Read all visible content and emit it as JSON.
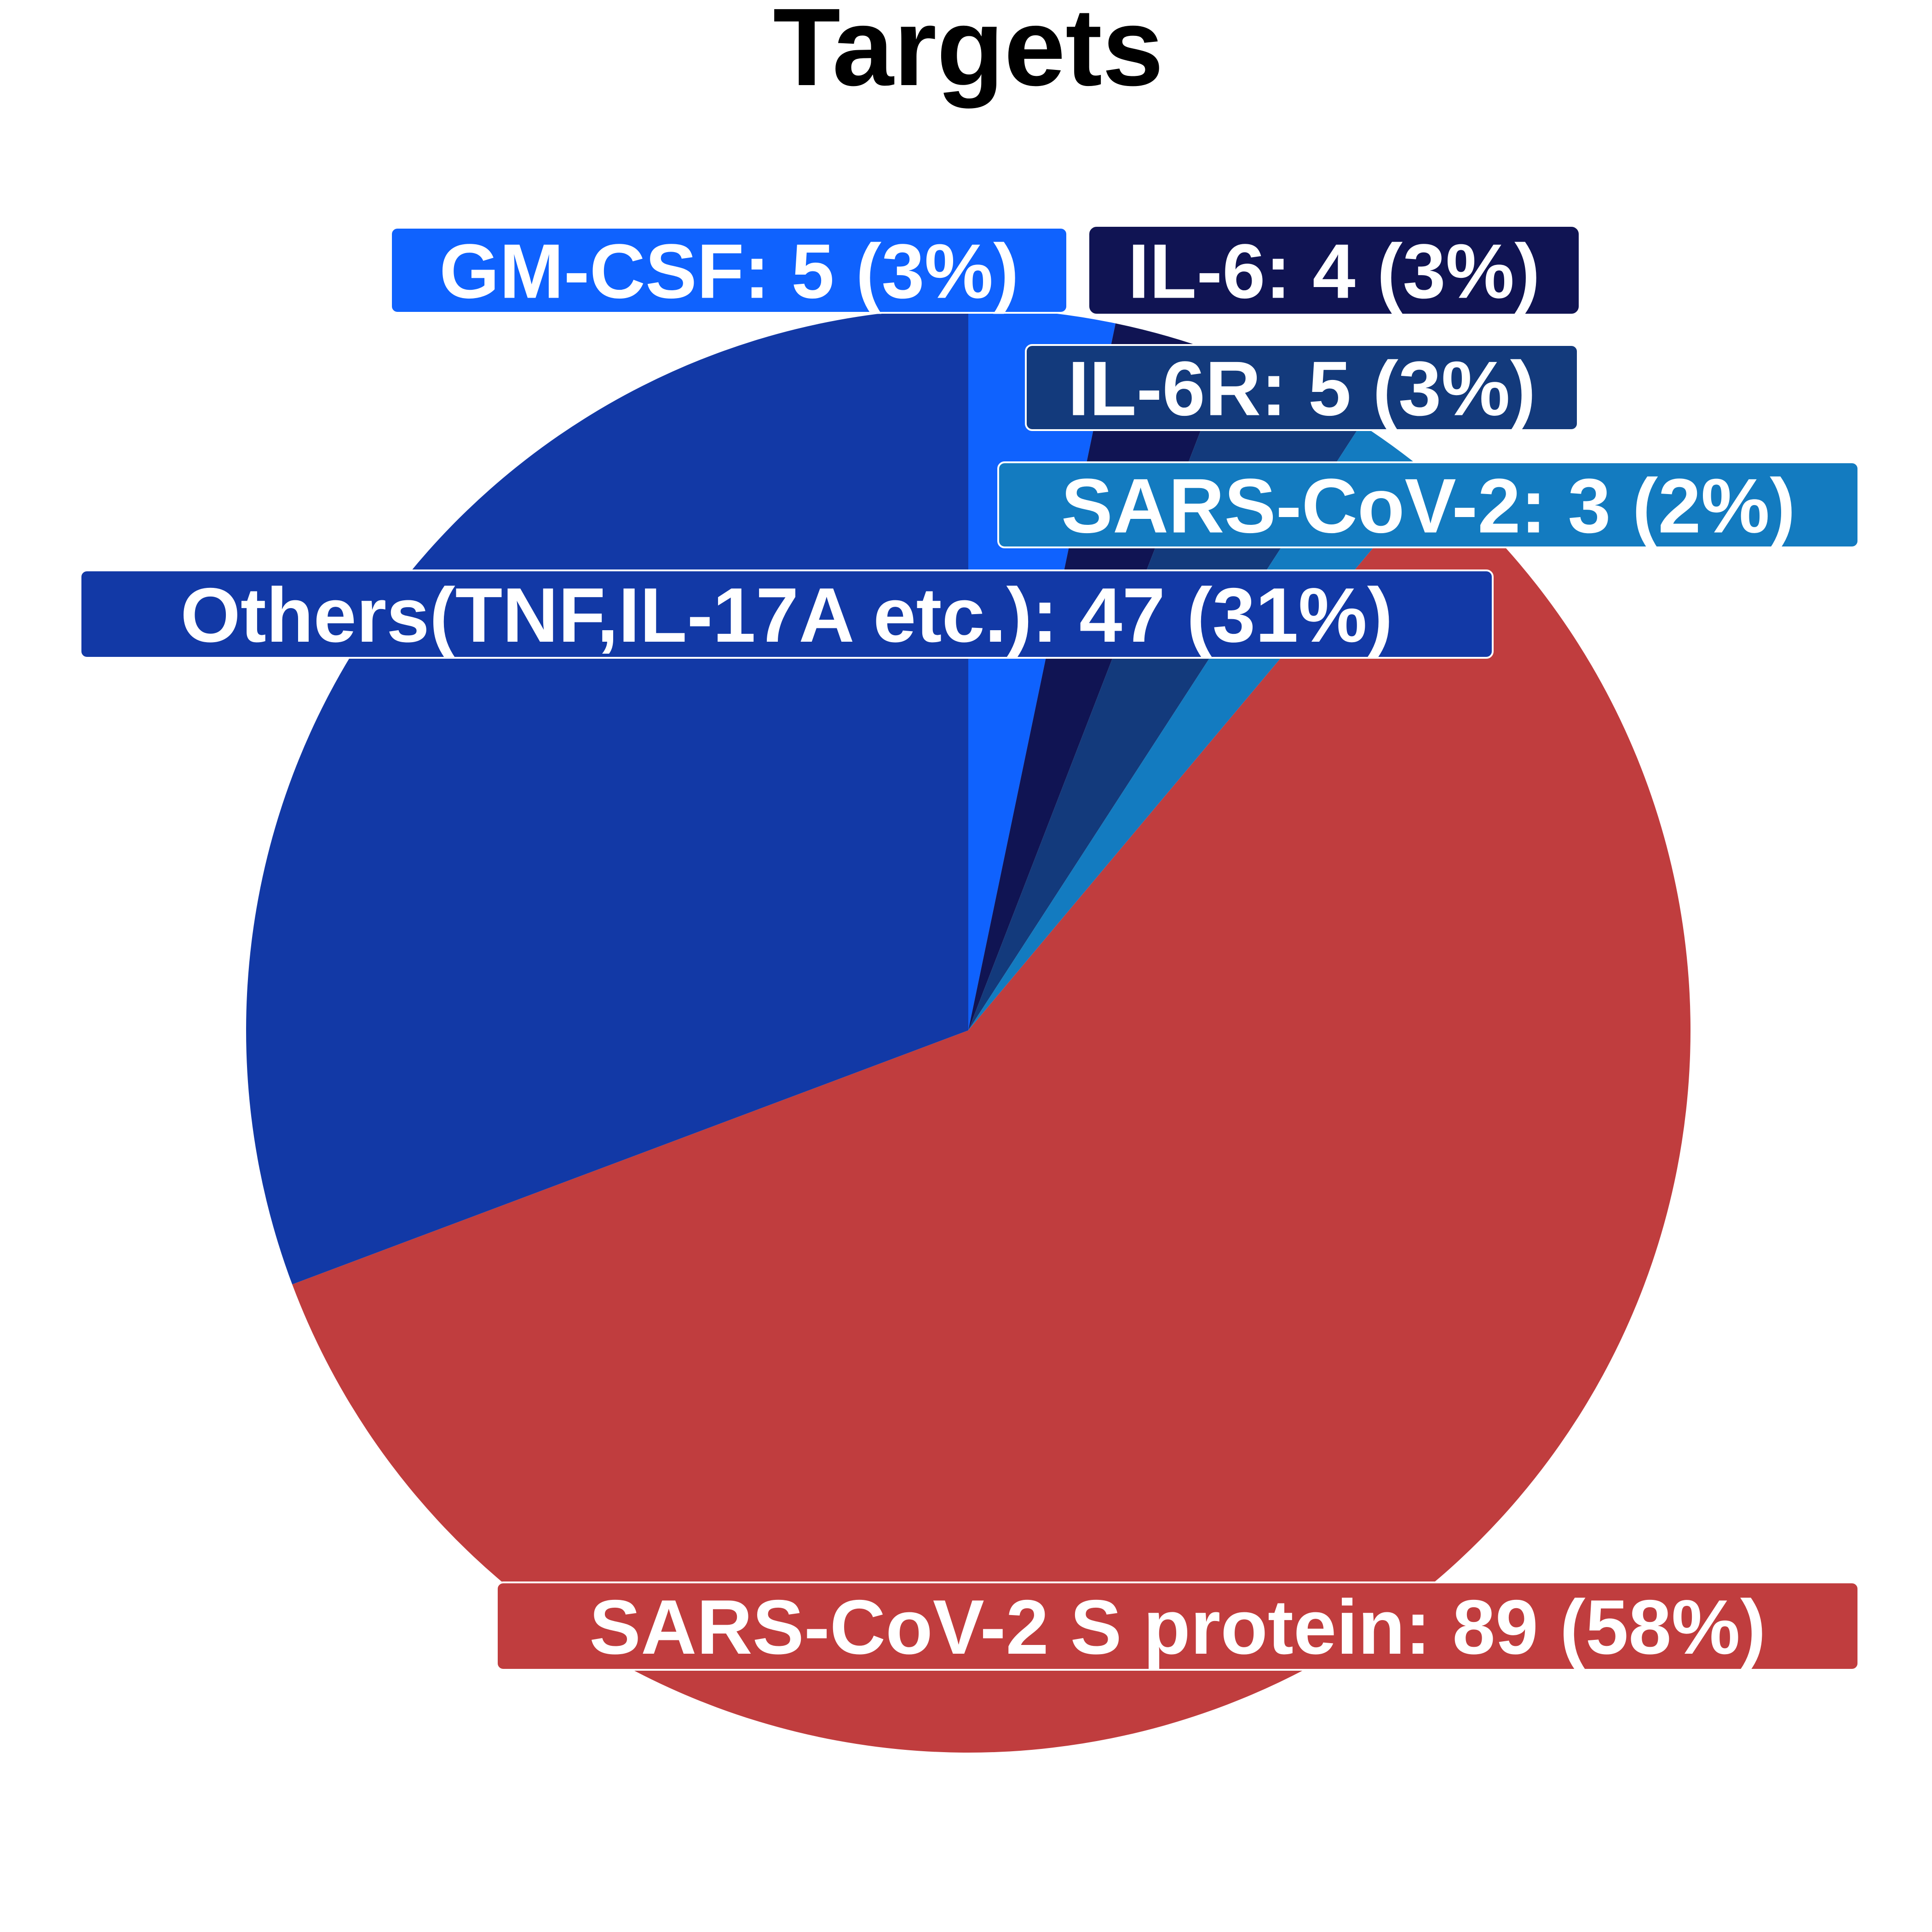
{
  "chart_data": {
    "type": "pie",
    "title": "Targets",
    "start_angle": "12 o'clock",
    "direction": "clockwise",
    "slices": [
      {
        "name": "GM-CSF",
        "value": 5,
        "percent_label": "3%",
        "label": "GM-CSF: 5 (3%)",
        "color": "#0f62fe",
        "label_border": "#ffffff"
      },
      {
        "name": "IL-6",
        "value": 4,
        "percent_label": "3%",
        "label": "IL-6: 4 (3%)",
        "color": "#101453",
        "label_border": "#101453"
      },
      {
        "name": "IL-6R",
        "value": 5,
        "percent_label": "3%",
        "label": "IL-6R: 5 (3%)",
        "color": "#133a7c",
        "label_border": "#ffffff"
      },
      {
        "name": "SARS-CoV-2",
        "value": 3,
        "percent_label": "2%",
        "label": "SARS-CoV-2: 3 (2%)",
        "color": "#137bc0",
        "label_border": "#ffffff"
      },
      {
        "name": "SARS-CoV-2 S protein",
        "value": 89,
        "percent_label": "58%",
        "label": "SARS-CoV-2 S protein: 89 (58%)",
        "color": "#c03d3e",
        "label_border": "#ffffff"
      },
      {
        "name": "Others(TNF,IL-17A etc.)",
        "value": 47,
        "percent_label": "31%",
        "label": "Others(TNF,IL-17A etc.): 47 (31%)",
        "color": "#1239a6",
        "label_border": "#ffffff"
      }
    ]
  }
}
